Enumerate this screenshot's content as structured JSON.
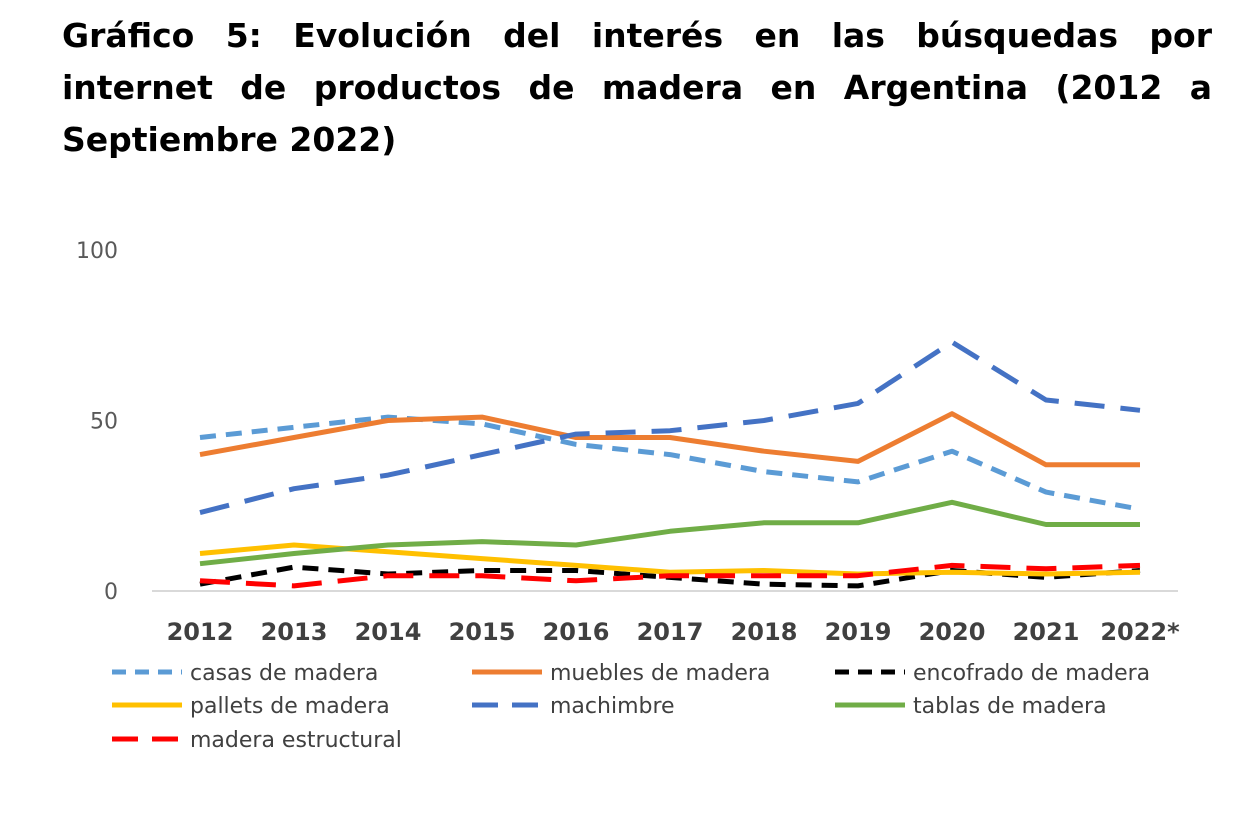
{
  "title": "Gráfico 5: Evolución del interés en las búsquedas por internet de productos de madera en Argentina (2012 a Septiembre 2022)",
  "chart_data": {
    "type": "line",
    "categories": [
      "2012",
      "2013",
      "2014",
      "2015",
      "2016",
      "2017",
      "2018",
      "2019",
      "2020",
      "2021",
      "2022*"
    ],
    "ylim": [
      0,
      100
    ],
    "yticks": [
      "0",
      "50",
      "100"
    ],
    "grid": false,
    "legend_position": "bottom",
    "series": [
      {
        "name": "casas de madera",
        "color": "#5B9BD5",
        "style": "dash",
        "values": [
          45,
          48,
          51,
          49,
          43,
          40,
          35,
          32,
          41,
          29,
          24
        ]
      },
      {
        "name": "muebles de madera",
        "color": "#ED7D31",
        "style": "solid",
        "values": [
          40,
          45,
          50,
          51,
          45,
          45,
          41,
          38,
          52,
          37,
          37
        ]
      },
      {
        "name": "encofrado de madera",
        "color": "#000000",
        "style": "dash",
        "values": [
          2,
          7,
          5,
          6,
          6,
          4,
          2,
          1.5,
          6,
          4,
          6
        ]
      },
      {
        "name": "pallets de madera",
        "color": "#FFC000",
        "style": "solid",
        "values": [
          11,
          13.5,
          11.5,
          9.5,
          7.5,
          5.5,
          6,
          5,
          5.5,
          5,
          5.5
        ]
      },
      {
        "name": "machimbre",
        "color": "#4472C4",
        "style": "longdash",
        "values": [
          23,
          30,
          34,
          40,
          46,
          47,
          50,
          55,
          73,
          56,
          53
        ]
      },
      {
        "name": "tablas de madera",
        "color": "#70AD47",
        "style": "solid",
        "values": [
          8,
          11,
          13.5,
          14.5,
          13.5,
          17.5,
          20,
          20,
          26,
          19.5,
          19.5
        ]
      },
      {
        "name": "madera estructural",
        "color": "#FF0000",
        "style": "longdash",
        "values": [
          3,
          1.5,
          4.5,
          4.5,
          3,
          4.5,
          4.5,
          4.5,
          7.5,
          6.5,
          7.5
        ]
      }
    ]
  }
}
